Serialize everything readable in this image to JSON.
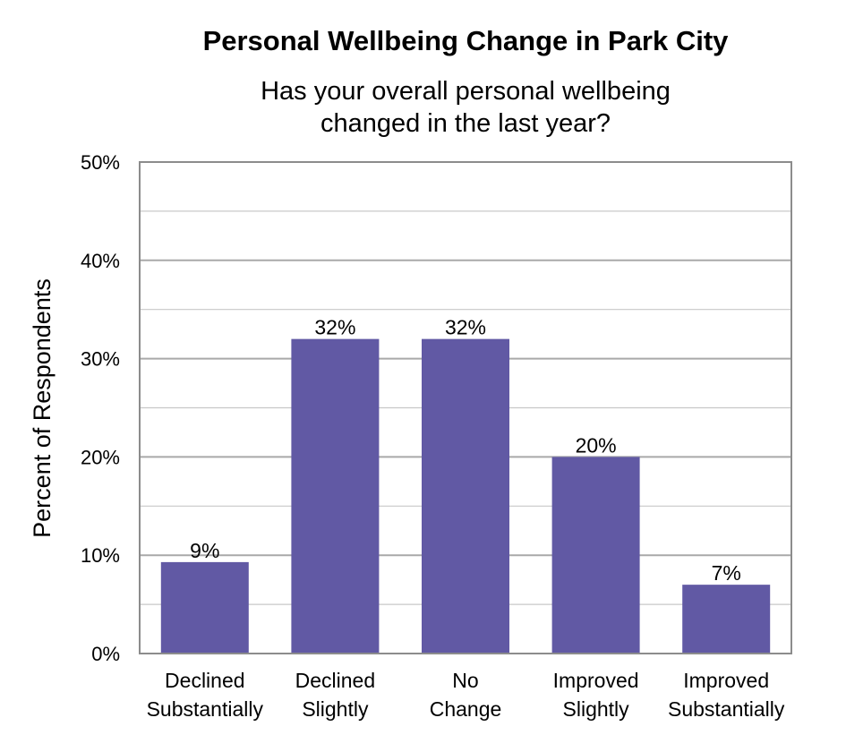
{
  "chart_data": {
    "type": "bar",
    "title": "Personal Wellbeing Change in Park City",
    "subtitle_lines": [
      "Has your overall personal wellbeing",
      "changed in the last year?"
    ],
    "ylabel": "Percent of Respondents",
    "xlabel": "",
    "categories": [
      [
        "Declined",
        "Substantially"
      ],
      [
        "Declined",
        "Slightly"
      ],
      [
        "No",
        "Change"
      ],
      [
        "Improved",
        "Slightly"
      ],
      [
        "Improved",
        "Substantially"
      ]
    ],
    "values": [
      9.3,
      32,
      32,
      20,
      7
    ],
    "data_labels": [
      "9%",
      "32%",
      "32%",
      "20%",
      "7%"
    ],
    "ylim": [
      0,
      50
    ],
    "yticks": [
      0,
      10,
      20,
      30,
      40,
      50
    ],
    "ytick_labels": [
      "0%",
      "10%",
      "20%",
      "30%",
      "40%",
      "50%"
    ],
    "minor_grid_step": 5,
    "grid": true,
    "bar_color": "#6159a4",
    "grid_color": "#c8c8c8",
    "major_grid_color": "#a9a9a9",
    "axis_color": "#8c8c8c"
  }
}
